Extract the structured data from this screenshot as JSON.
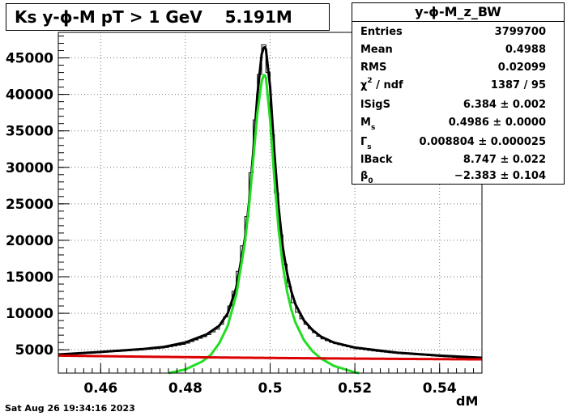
{
  "title": "Ks y-ϕ-M pT > 1 GeV    5.191M",
  "footer": "Sat Aug 26 19:34:16 2023",
  "stats": {
    "title": "y-ϕ-M_z_BW",
    "rows": [
      {
        "label": "Entries",
        "value": "3799700"
      },
      {
        "label": "Mean",
        "value": "0.4988"
      },
      {
        "label": "RMS",
        "value": "0.02099"
      },
      {
        "label": "χ / ndf",
        "sup": "2",
        "value": "1387 / 95"
      },
      {
        "label": "lSigS",
        "value": "6.384 ± 0.002"
      },
      {
        "label": "M",
        "sub": "s",
        "value": "0.4986 ± 0.0000"
      },
      {
        "label": "Γ",
        "sub": "s",
        "value": "0.008804 ± 0.000025"
      },
      {
        "label": "lBack",
        "value": "8.747 ± 0.022"
      },
      {
        "label": "β",
        "sub": "0",
        "value": "−2.383 ± 0.104"
      }
    ]
  },
  "chart_data": {
    "type": "line",
    "title": "Ks y-ϕ-M pT > 1 GeV    5.191M",
    "xlabel": "dM",
    "ylabel": "",
    "xlim": [
      0.45,
      0.55
    ],
    "ylim": [
      1800,
      48500
    ],
    "grid": true,
    "xticks": [
      0.46,
      0.48,
      0.5,
      0.52,
      0.54
    ],
    "xtick_labels": [
      "0.46",
      "0.48",
      "0.5",
      "0.52",
      "0.54"
    ],
    "yticks": [
      5000,
      10000,
      15000,
      20000,
      25000,
      30000,
      35000,
      40000,
      45000
    ],
    "ytick_labels": [
      "5000",
      "10000",
      "15000",
      "20000",
      "25000",
      "30000",
      "35000",
      "40000",
      "45000"
    ],
    "colors": {
      "histogram": "#000000",
      "total_fit": "#000000",
      "signal": "#22dd22",
      "background": "#dd0000"
    },
    "series": [
      {
        "role": "histogram",
        "x": [
          0.45,
          0.455,
          0.46,
          0.465,
          0.47,
          0.475,
          0.48,
          0.485,
          0.488,
          0.49,
          0.492,
          0.494,
          0.495,
          0.496,
          0.497,
          0.498,
          0.4985,
          0.499,
          0.4995,
          0.5,
          0.501,
          0.502,
          0.503,
          0.504,
          0.505,
          0.506,
          0.508,
          0.51,
          0.512,
          0.515,
          0.52,
          0.525,
          0.53,
          0.535,
          0.54,
          0.545,
          0.55
        ],
        "values": [
          4300,
          4500,
          4650,
          4800,
          5000,
          5250,
          5800,
          6900,
          8000,
          10000,
          14000,
          21000,
          25500,
          33000,
          40000,
          45500,
          46800,
          46000,
          43000,
          39000,
          30000,
          23000,
          18500,
          15000,
          12300,
          10600,
          8800,
          7600,
          6600,
          5900,
          5200,
          4800,
          4500,
          4300,
          4100,
          3900,
          3800
        ]
      },
      {
        "role": "total_fit",
        "x": [
          0.45,
          0.46,
          0.47,
          0.475,
          0.48,
          0.485,
          0.488,
          0.49,
          0.492,
          0.494,
          0.495,
          0.496,
          0.497,
          0.498,
          0.4986,
          0.499,
          0.5,
          0.501,
          0.502,
          0.503,
          0.504,
          0.505,
          0.506,
          0.508,
          0.51,
          0.512,
          0.515,
          0.52,
          0.53,
          0.54,
          0.55
        ],
        "values": [
          4350,
          4700,
          5100,
          5400,
          6000,
          7100,
          8300,
          10000,
          13500,
          20000,
          25000,
          32000,
          40000,
          45500,
          46600,
          46200,
          41000,
          32000,
          24500,
          19000,
          15500,
          13000,
          11200,
          9000,
          7700,
          6800,
          6000,
          5300,
          4600,
          4200,
          3900
        ]
      },
      {
        "role": "signal",
        "x": [
          0.476,
          0.48,
          0.484,
          0.486,
          0.488,
          0.49,
          0.492,
          0.494,
          0.495,
          0.496,
          0.497,
          0.498,
          0.4986,
          0.499,
          0.5,
          0.501,
          0.502,
          0.503,
          0.504,
          0.505,
          0.506,
          0.508,
          0.51,
          0.512,
          0.515,
          0.52,
          0.521
        ],
        "values": [
          1800,
          2300,
          3400,
          4300,
          5900,
          8300,
          12500,
          19500,
          24500,
          31000,
          37500,
          41800,
          42800,
          42300,
          36500,
          28500,
          21500,
          16500,
          13000,
          10500,
          8700,
          6300,
          4800,
          3800,
          2800,
          1900,
          1800
        ]
      },
      {
        "role": "background",
        "x": [
          0.45,
          0.47,
          0.49,
          0.5,
          0.51,
          0.53,
          0.55
        ],
        "values": [
          4200,
          4050,
          3930,
          3880,
          3830,
          3750,
          3680
        ]
      }
    ]
  }
}
